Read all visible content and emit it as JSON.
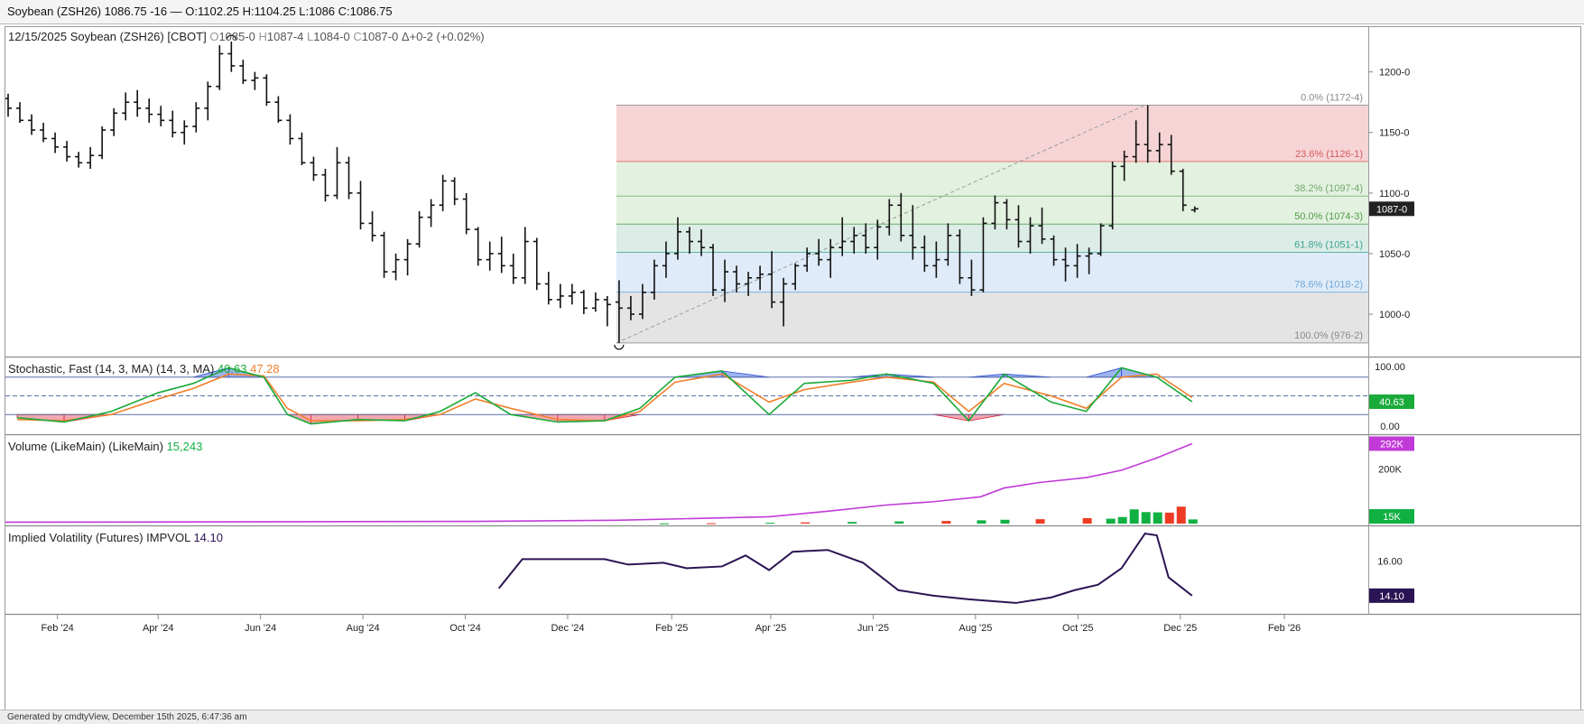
{
  "window": {
    "title": "Soybean (ZSH26) 1086.75 -16 — O:1102.25 H:1104.25 L:1086 C:1086.75"
  },
  "footer": {
    "text": "Generated by cmdtyView, December 15th 2025, 6:47:36 am"
  },
  "colors": {
    "up": "#11b043",
    "down": "#ee3b24",
    "volume_ma": "#c13ad8",
    "iv_line": "#2b1453",
    "stoch_k": "#1aaa3a",
    "stoch_d": "#f07f2a",
    "fib_red": "#f6d4d6",
    "fib_green": "#e3f1e0",
    "fib_teal": "#dcece7",
    "fib_blue": "#dfebf8",
    "fib_gray": "#e4e4e4"
  },
  "main_panel": {
    "header": {
      "date": "12/15/2025",
      "symbol": "Soybean (ZSH26) [CBOT]",
      "ohlc": [
        {
          "k": "O",
          "v": "1085-0"
        },
        {
          "k": "H",
          "v": "1087-4"
        },
        {
          "k": "L",
          "v": "1084-0"
        },
        {
          "k": "C",
          "v": "1087-0"
        }
      ],
      "change": "Δ+0-2 (+0.02%)"
    },
    "price_ticks": [
      {
        "label": "1200-0",
        "value": 1200
      },
      {
        "label": "1150-0",
        "value": 1150
      },
      {
        "label": "1100-0",
        "value": 1100
      },
      {
        "label": "1050-0",
        "value": 1050
      },
      {
        "label": "1000-0",
        "value": 1000
      }
    ],
    "last_price_label": "1087-0",
    "fib_levels": [
      {
        "label": "0.0% (1172-4)",
        "value": 1172.5,
        "pct": 0.0
      },
      {
        "label": "23.6% (1126-1)",
        "value": 1126.1,
        "pct": 23.6
      },
      {
        "label": "38.2% (1097-4)",
        "value": 1097.5,
        "pct": 38.2
      },
      {
        "label": "50.0% (1074-3)",
        "value": 1074.4,
        "pct": 50.0
      },
      {
        "label": "61.8% (1051-1)",
        "value": 1051.1,
        "pct": 61.8
      },
      {
        "label": "78.6% (1018-2)",
        "value": 1018.2,
        "pct": 78.6
      },
      {
        "label": "100.0% (976-2)",
        "value": 976.25,
        "pct": 100.0
      }
    ]
  },
  "stoch_panel": {
    "title": "Stochastic, Fast (14, 3, MA)",
    "params": "(14, 3, MA)",
    "k_value": "40.63",
    "d_value": "47.28",
    "ticks": [
      "100.00",
      "0.00"
    ],
    "right_label": "40.63"
  },
  "volume_panel": {
    "title": "Volume (LikeMain)",
    "params": "(LikeMain)",
    "value": "15,243",
    "ticks": [
      "200K"
    ],
    "ma_label": "292K",
    "vol_label": "15K"
  },
  "iv_panel": {
    "title": "Implied Volatility (Futures)",
    "code": "IMPVOL",
    "value": "14.10",
    "ticks": [
      "16.00"
    ],
    "right_label": "14.10"
  },
  "x_axis": {
    "labels": [
      "Feb '24",
      "Apr '24",
      "Jun '24",
      "Aug '24",
      "Oct '24",
      "Dec '24",
      "Feb '25",
      "Apr '25",
      "Jun '25",
      "Aug '25",
      "Oct '25",
      "Dec '25",
      "Feb '26"
    ]
  },
  "chart_data": [
    {
      "type": "ohlc_bar",
      "title": "Soybean (ZSH26) [CBOT]",
      "interval": "weekly",
      "x_range": [
        "2024-01-01",
        "2026-03-23"
      ],
      "ylim": [
        965,
        1237
      ],
      "bars": [
        [
          "2024-01-01",
          1178,
          1182,
          1163,
          1170
        ],
        [
          "2024-01-08",
          1170,
          1175,
          1158,
          1160
        ],
        [
          "2024-01-15",
          1160,
          1165,
          1148,
          1152
        ],
        [
          "2024-01-22",
          1152,
          1158,
          1142,
          1145
        ],
        [
          "2024-01-29",
          1145,
          1150,
          1133,
          1138
        ],
        [
          "2024-02-05",
          1138,
          1143,
          1126,
          1130
        ],
        [
          "2024-02-12",
          1130,
          1134,
          1121,
          1125
        ],
        [
          "2024-02-19",
          1125,
          1138,
          1120,
          1131
        ],
        [
          "2024-02-26",
          1131,
          1155,
          1128,
          1152
        ],
        [
          "2024-03-04",
          1152,
          1170,
          1147,
          1166
        ],
        [
          "2024-03-11",
          1166,
          1183,
          1160,
          1175
        ],
        [
          "2024-03-18",
          1175,
          1185,
          1163,
          1170
        ],
        [
          "2024-03-25",
          1170,
          1178,
          1158,
          1165
        ],
        [
          "2024-04-01",
          1165,
          1172,
          1155,
          1160
        ],
        [
          "2024-04-08",
          1160,
          1168,
          1146,
          1150
        ],
        [
          "2024-04-15",
          1150,
          1160,
          1140,
          1155
        ],
        [
          "2024-04-22",
          1155,
          1175,
          1150,
          1170
        ],
        [
          "2024-04-29",
          1170,
          1192,
          1160,
          1188
        ],
        [
          "2024-05-06",
          1188,
          1222,
          1185,
          1215
        ],
        [
          "2024-05-13",
          1215,
          1225,
          1200,
          1205
        ],
        [
          "2024-05-20",
          1205,
          1210,
          1190,
          1193
        ],
        [
          "2024-05-27",
          1193,
          1200,
          1185,
          1195
        ],
        [
          "2024-06-03",
          1195,
          1198,
          1172,
          1175
        ],
        [
          "2024-06-10",
          1175,
          1180,
          1158,
          1160
        ],
        [
          "2024-06-17",
          1160,
          1165,
          1140,
          1145
        ],
        [
          "2024-06-24",
          1145,
          1150,
          1123,
          1125
        ],
        [
          "2024-07-01",
          1125,
          1130,
          1110,
          1115
        ],
        [
          "2024-07-08",
          1115,
          1120,
          1093,
          1098
        ],
        [
          "2024-07-15",
          1098,
          1138,
          1095,
          1125
        ],
        [
          "2024-07-22",
          1125,
          1130,
          1095,
          1100
        ],
        [
          "2024-07-29",
          1100,
          1110,
          1070,
          1075
        ],
        [
          "2024-08-05",
          1075,
          1085,
          1060,
          1065
        ],
        [
          "2024-08-12",
          1065,
          1068,
          1030,
          1035
        ],
        [
          "2024-08-19",
          1035,
          1050,
          1028,
          1045
        ],
        [
          "2024-08-26",
          1045,
          1062,
          1032,
          1058
        ],
        [
          "2024-09-02",
          1058,
          1085,
          1055,
          1080
        ],
        [
          "2024-09-09",
          1080,
          1095,
          1072,
          1090
        ],
        [
          "2024-09-16",
          1090,
          1115,
          1085,
          1110
        ],
        [
          "2024-09-23",
          1110,
          1113,
          1090,
          1095
        ],
        [
          "2024-09-30",
          1095,
          1100,
          1066,
          1070
        ],
        [
          "2024-10-07",
          1070,
          1072,
          1040,
          1045
        ],
        [
          "2024-10-14",
          1045,
          1060,
          1036,
          1050
        ],
        [
          "2024-10-21",
          1050,
          1064,
          1034,
          1040
        ],
        [
          "2024-10-28",
          1040,
          1050,
          1025,
          1030
        ],
        [
          "2024-11-04",
          1030,
          1072,
          1025,
          1060
        ],
        [
          "2024-11-11",
          1060,
          1063,
          1020,
          1025
        ],
        [
          "2024-11-18",
          1025,
          1035,
          1008,
          1012
        ],
        [
          "2024-11-25",
          1012,
          1025,
          1005,
          1015
        ],
        [
          "2024-12-02",
          1015,
          1025,
          1008,
          1018
        ],
        [
          "2024-12-09",
          1018,
          1020,
          1000,
          1005
        ],
        [
          "2024-12-16",
          1005,
          1018,
          1002,
          1012
        ],
        [
          "2024-12-23",
          1012,
          1015,
          990,
          1008
        ],
        [
          "2024-12-30",
          1010,
          1028,
          976.25,
          1005
        ],
        [
          "2025-01-06",
          1005,
          1015,
          995,
          1000
        ],
        [
          "2025-01-13",
          1000,
          1025,
          996,
          1018
        ],
        [
          "2025-01-20",
          1018,
          1045,
          1012,
          1040
        ],
        [
          "2025-01-27",
          1040,
          1060,
          1030,
          1050
        ],
        [
          "2025-02-03",
          1050,
          1080,
          1045,
          1068
        ],
        [
          "2025-02-10",
          1068,
          1072,
          1050,
          1060
        ],
        [
          "2025-02-17",
          1060,
          1070,
          1048,
          1055
        ],
        [
          "2025-02-24",
          1055,
          1058,
          1015,
          1020
        ],
        [
          "2025-03-03",
          1020,
          1045,
          1010,
          1035
        ],
        [
          "2025-03-10",
          1035,
          1040,
          1018,
          1025
        ],
        [
          "2025-03-17",
          1025,
          1035,
          1015,
          1030
        ],
        [
          "2025-03-24",
          1030,
          1040,
          1020,
          1033
        ],
        [
          "2025-03-31",
          1033,
          1052,
          1005,
          1010
        ],
        [
          "2025-04-07",
          1010,
          1030,
          990,
          1025
        ],
        [
          "2025-04-14",
          1025,
          1042,
          1020,
          1040
        ],
        [
          "2025-04-21",
          1040,
          1055,
          1035,
          1050
        ],
        [
          "2025-04-28",
          1050,
          1062,
          1040,
          1045
        ],
        [
          "2025-05-05",
          1045,
          1062,
          1030,
          1055
        ],
        [
          "2025-05-12",
          1055,
          1080,
          1048,
          1060
        ],
        [
          "2025-05-19",
          1060,
          1072,
          1050,
          1065
        ],
        [
          "2025-05-26",
          1065,
          1075,
          1050,
          1055
        ],
        [
          "2025-06-02",
          1055,
          1078,
          1045,
          1072
        ],
        [
          "2025-06-09",
          1072,
          1095,
          1065,
          1090
        ],
        [
          "2025-06-16",
          1090,
          1100,
          1060,
          1065
        ],
        [
          "2025-06-23",
          1065,
          1090,
          1045,
          1055
        ],
        [
          "2025-06-30",
          1055,
          1065,
          1035,
          1040
        ],
        [
          "2025-07-07",
          1040,
          1060,
          1030,
          1045
        ],
        [
          "2025-07-14",
          1045,
          1075,
          1040,
          1065
        ],
        [
          "2025-07-21",
          1065,
          1070,
          1025,
          1030
        ],
        [
          "2025-07-28",
          1030,
          1045,
          1015,
          1020
        ],
        [
          "2025-08-04",
          1020,
          1080,
          1018,
          1075
        ],
        [
          "2025-08-11",
          1075,
          1098,
          1070,
          1092
        ],
        [
          "2025-08-18",
          1092,
          1095,
          1070,
          1078
        ],
        [
          "2025-08-25",
          1078,
          1090,
          1055,
          1060
        ],
        [
          "2025-09-01",
          1060,
          1080,
          1050,
          1073
        ],
        [
          "2025-09-08",
          1073,
          1088,
          1058,
          1062
        ],
        [
          "2025-09-15",
          1062,
          1065,
          1040,
          1045
        ],
        [
          "2025-09-22",
          1045,
          1055,
          1027,
          1040
        ],
        [
          "2025-09-29",
          1040,
          1058,
          1030,
          1048
        ],
        [
          "2025-10-06",
          1048,
          1055,
          1033,
          1050
        ],
        [
          "2025-10-13",
          1050,
          1075,
          1048,
          1073
        ],
        [
          "2025-10-20",
          1073,
          1126,
          1070,
          1122
        ],
        [
          "2025-10-27",
          1122,
          1135,
          1110,
          1130
        ],
        [
          "2025-11-03",
          1130,
          1160,
          1125,
          1140
        ],
        [
          "2025-11-10",
          1140,
          1172.5,
          1125,
          1135
        ],
        [
          "2025-11-17",
          1135,
          1150,
          1125,
          1140
        ],
        [
          "2025-11-24",
          1140,
          1148,
          1115,
          1118
        ],
        [
          "2025-12-01",
          1118,
          1120,
          1085,
          1090
        ],
        [
          "2025-12-08",
          1086,
          1089,
          1084,
          1087
        ]
      ]
    },
    {
      "type": "line",
      "title": "Stochastic, Fast (14, 3, MA)",
      "ylim": [
        0,
        100
      ],
      "levels": [
        80,
        50,
        20
      ],
      "x": [
        "2024-01-08",
        "2024-02-05",
        "2024-03-04",
        "2024-04-01",
        "2024-04-22",
        "2024-05-13",
        "2024-06-03",
        "2024-06-17",
        "2024-07-01",
        "2024-07-29",
        "2024-08-26",
        "2024-09-16",
        "2024-10-07",
        "2024-10-28",
        "2024-11-25",
        "2024-12-23",
        "2025-01-13",
        "2025-02-03",
        "2025-03-03",
        "2025-03-31",
        "2025-04-21",
        "2025-05-19",
        "2025-06-09",
        "2025-07-07",
        "2025-07-28",
        "2025-08-18",
        "2025-09-15",
        "2025-10-06",
        "2025-10-27",
        "2025-11-17",
        "2025-12-08"
      ],
      "series": [
        {
          "name": "%K",
          "values": [
            15,
            8,
            25,
            55,
            70,
            95,
            80,
            20,
            5,
            12,
            10,
            25,
            55,
            20,
            8,
            10,
            30,
            80,
            90,
            20,
            70,
            75,
            85,
            70,
            10,
            85,
            40,
            25,
            95,
            80,
            40.63
          ]
        },
        {
          "name": "%D",
          "values": [
            12,
            10,
            20,
            45,
            62,
            85,
            82,
            30,
            10,
            10,
            12,
            20,
            45,
            30,
            12,
            10,
            25,
            72,
            85,
            40,
            60,
            72,
            80,
            72,
            25,
            70,
            50,
            30,
            80,
            85,
            47.28
          ]
        }
      ]
    },
    {
      "type": "bar",
      "title": "Volume (LikeMain)",
      "ylim": [
        0,
        310000
      ],
      "x": [
        "2025-01-27",
        "2025-02-24",
        "2025-03-31",
        "2025-04-21",
        "2025-05-19",
        "2025-06-16",
        "2025-07-14",
        "2025-08-04",
        "2025-08-18",
        "2025-09-08",
        "2025-10-06",
        "2025-10-20",
        "2025-10-27",
        "2025-11-03",
        "2025-11-10",
        "2025-11-17",
        "2025-11-24",
        "2025-12-01",
        "2025-12-08"
      ],
      "values": [
        1000,
        1500,
        3000,
        4500,
        6000,
        8000,
        9500,
        12000,
        14000,
        16000,
        20000,
        18000,
        24000,
        52000,
        42000,
        41000,
        40000,
        62000,
        15243
      ],
      "up": [
        true,
        false,
        true,
        false,
        true,
        true,
        false,
        true,
        true,
        false,
        false,
        true,
        true,
        true,
        true,
        true,
        false,
        false,
        true
      ],
      "ma": {
        "x": [
          "2024-01-01",
          "2024-10-07",
          "2024-12-30",
          "2025-03-31",
          "2025-05-05",
          "2025-06-09",
          "2025-07-07",
          "2025-08-04",
          "2025-08-18",
          "2025-09-08",
          "2025-10-06",
          "2025-10-27",
          "2025-11-17",
          "2025-12-08"
        ],
        "values": [
          5000,
          8000,
          12000,
          25000,
          45000,
          68000,
          80000,
          98000,
          130000,
          150000,
          168000,
          195000,
          240000,
          292000
        ]
      }
    },
    {
      "type": "line",
      "title": "Implied Volatility (Futures)",
      "ylim": [
        13.4,
        17.5
      ],
      "x": [
        "2024-10-21",
        "2024-11-04",
        "2024-11-18",
        "2024-12-23",
        "2025-01-06",
        "2025-01-27",
        "2025-02-10",
        "2025-03-03",
        "2025-03-17",
        "2025-03-31",
        "2025-04-14",
        "2025-05-05",
        "2025-05-26",
        "2025-06-16",
        "2025-07-07",
        "2025-07-28",
        "2025-08-11",
        "2025-08-25",
        "2025-09-15",
        "2025-09-29",
        "2025-10-13",
        "2025-10-27",
        "2025-11-10",
        "2025-11-17",
        "2025-11-24",
        "2025-12-08"
      ],
      "series": [
        {
          "name": "IMPVOL",
          "values": [
            14.5,
            16.1,
            16.1,
            16.1,
            15.8,
            15.9,
            15.6,
            15.7,
            16.3,
            15.5,
            16.5,
            16.6,
            15.9,
            14.4,
            14.1,
            13.9,
            13.8,
            13.7,
            14.0,
            14.4,
            14.7,
            15.6,
            17.5,
            17.4,
            15.1,
            14.1
          ]
        }
      ]
    }
  ]
}
